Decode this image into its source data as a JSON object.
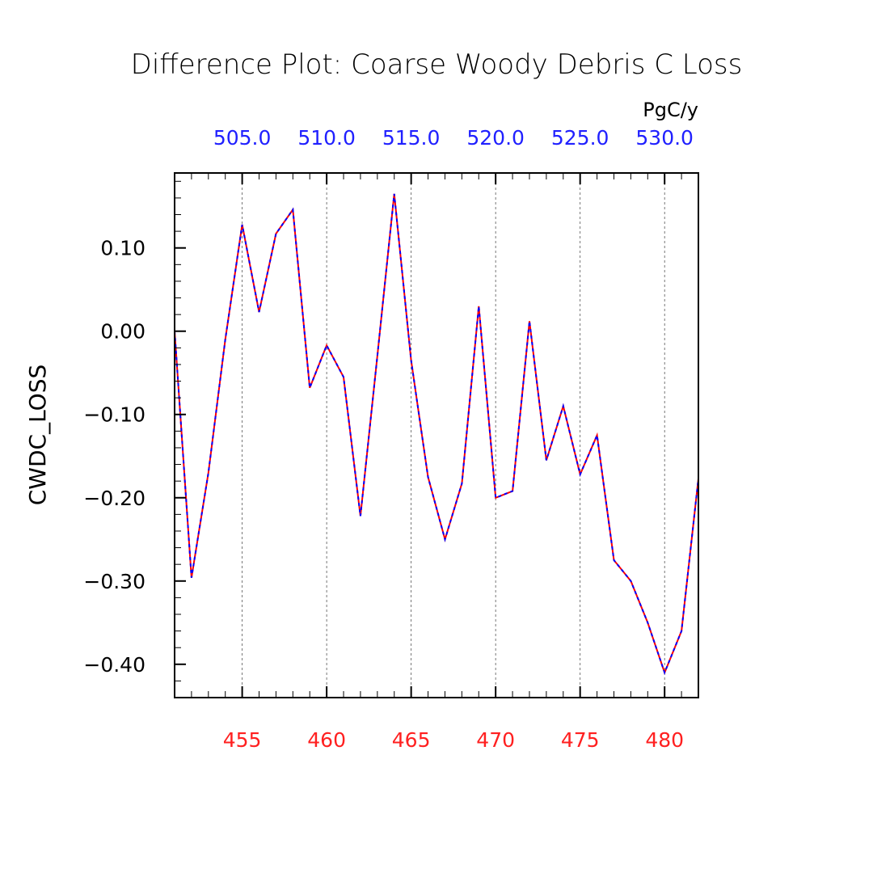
{
  "chart_data": {
    "type": "line",
    "title": "Difference Plot: Coarse Woody Debris C Loss",
    "units": "PgC/y",
    "ylabel": "CWDC_LOSS",
    "xlim": [
      451,
      482
    ],
    "ylim": [
      -0.44,
      0.19
    ],
    "grid": "vertical-dashed",
    "bottom_axis": {
      "ticks": [
        455,
        460,
        465,
        470,
        475,
        480
      ],
      "labels": [
        "455",
        "460",
        "465",
        "470",
        "475",
        "480"
      ],
      "color": "#ff2020"
    },
    "top_axis": {
      "ticks": [
        455,
        460,
        465,
        470,
        475,
        480
      ],
      "labels": [
        "505.0",
        "510.0",
        "515.0",
        "520.0",
        "525.0",
        "530.0"
      ],
      "color": "#2020ff"
    },
    "y_axis": {
      "ticks": [
        0.1,
        0.0,
        -0.1,
        -0.2,
        -0.3,
        -0.4
      ],
      "labels": [
        "0.10",
        "0.00",
        "−0.10",
        "−0.20",
        "−0.30",
        "−0.40"
      ]
    },
    "x": [
      451,
      452,
      453,
      454,
      455,
      456,
      457,
      458,
      459,
      460,
      461,
      462,
      463,
      464,
      465,
      466,
      467,
      468,
      469,
      470,
      471,
      472,
      473,
      474,
      475,
      476,
      477,
      478,
      479,
      480,
      481,
      482
    ],
    "series": [
      {
        "color": "#ff0000",
        "style": "solid",
        "values": [
          0.0,
          -0.296,
          -0.17,
          -0.01,
          0.128,
          0.023,
          0.117,
          0.146,
          -0.068,
          -0.017,
          -0.055,
          -0.222,
          -0.03,
          0.165,
          -0.035,
          -0.175,
          -0.25,
          -0.183,
          0.03,
          -0.2,
          -0.192,
          0.012,
          -0.155,
          -0.09,
          -0.172,
          -0.125,
          -0.275,
          -0.3,
          -0.35,
          -0.41,
          -0.36,
          -0.177
        ]
      },
      {
        "color": "#0000ff",
        "style": "dashed",
        "values": [
          0.0,
          -0.296,
          -0.17,
          -0.01,
          0.128,
          0.023,
          0.117,
          0.146,
          -0.068,
          -0.017,
          -0.055,
          -0.222,
          -0.03,
          0.165,
          -0.035,
          -0.175,
          -0.25,
          -0.183,
          0.03,
          -0.2,
          -0.192,
          0.012,
          -0.155,
          -0.09,
          -0.172,
          -0.125,
          -0.275,
          -0.3,
          -0.35,
          -0.41,
          -0.36,
          -0.177
        ]
      }
    ]
  }
}
